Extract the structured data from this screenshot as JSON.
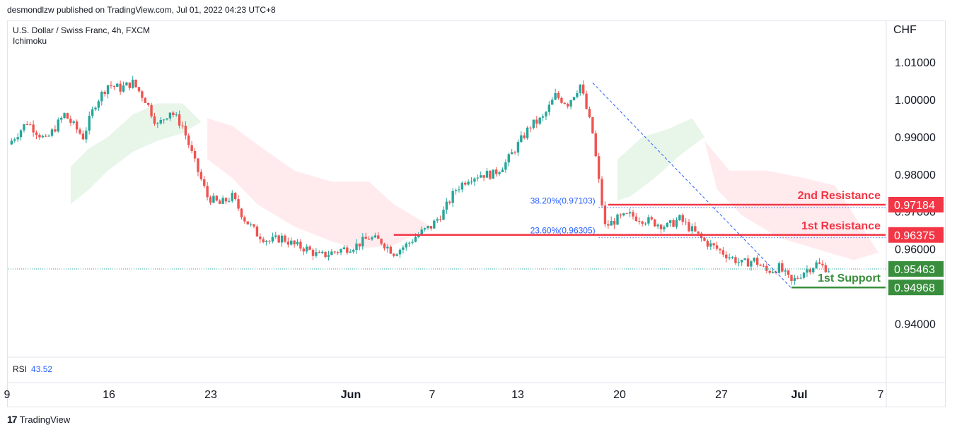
{
  "header": {
    "publisher_line": "desmondlzw published on TradingView.com, Jul 01, 2022 04:23 UTC+8"
  },
  "symbol": {
    "name": "U.S. Dollar / Swiss Franc, 4h, FXCM",
    "indicator": "Ichimoku"
  },
  "rsi": {
    "label": "RSI",
    "value": "43.52"
  },
  "footer": {
    "brand": "TradingView",
    "logo_icon": "tradingview-logo-icon"
  },
  "colors": {
    "up": "#26a69a",
    "down": "#ef5350",
    "resistance": "#f23645",
    "support": "#388e3c",
    "fib": "#2962ff",
    "cloud_bull": "#e8f5e9",
    "cloud_bear": "#ffebee"
  },
  "chart_data": {
    "type": "candlestick",
    "currency": "CHF",
    "ylim": [
      0.931,
      1.021
    ],
    "price_ticks": [
      "1.01000",
      "1.00000",
      "0.99000",
      "0.98000",
      "0.97000",
      "0.96000",
      "0.94000"
    ],
    "x_ticks": [
      "9",
      "16",
      "23",
      "Jun",
      "7",
      "13",
      "20",
      "27",
      "Jul",
      "7"
    ],
    "close_path": [
      [
        0,
        0.988
      ],
      [
        3,
        0.994
      ],
      [
        6,
        0.989
      ],
      [
        9,
        0.996
      ],
      [
        12,
        0.99
      ],
      [
        14,
        0.999
      ],
      [
        16,
        1.004
      ],
      [
        18,
        1.003
      ],
      [
        20,
        1.0045
      ],
      [
        22,
        1.0
      ],
      [
        24,
        0.993
      ],
      [
        26,
        0.997
      ],
      [
        28,
        0.993
      ],
      [
        30,
        0.983
      ],
      [
        32,
        0.974
      ],
      [
        34,
        0.972
      ],
      [
        36,
        0.974
      ],
      [
        38,
        0.968
      ],
      [
        40,
        0.964
      ],
      [
        42,
        0.962
      ],
      [
        44,
        0.963
      ],
      [
        46,
        0.961
      ],
      [
        48,
        0.96
      ],
      [
        50,
        0.958
      ],
      [
        52,
        0.959
      ],
      [
        54,
        0.96
      ],
      [
        56,
        0.961
      ],
      [
        58,
        0.963
      ],
      [
        60,
        0.962
      ],
      [
        62,
        0.959
      ],
      [
        64,
        0.961
      ],
      [
        66,
        0.964
      ],
      [
        68,
        0.966
      ],
      [
        70,
        0.97
      ],
      [
        72,
        0.976
      ],
      [
        74,
        0.979
      ],
      [
        76,
        0.98
      ],
      [
        78,
        0.98
      ],
      [
        80,
        0.983
      ],
      [
        82,
        0.988
      ],
      [
        84,
        0.993
      ],
      [
        86,
        0.995
      ],
      [
        88,
        1.001
      ],
      [
        90,
        0.999
      ],
      [
        92,
        1.004
      ],
      [
        94,
        0.991
      ],
      [
        95,
        0.978
      ],
      [
        96,
        0.966
      ],
      [
        98,
        0.968
      ],
      [
        100,
        0.969
      ],
      [
        102,
        0.968
      ],
      [
        104,
        0.967
      ],
      [
        106,
        0.966
      ],
      [
        108,
        0.968
      ],
      [
        110,
        0.965
      ],
      [
        112,
        0.962
      ],
      [
        114,
        0.96
      ],
      [
        116,
        0.958
      ],
      [
        118,
        0.956
      ],
      [
        120,
        0.957
      ],
      [
        122,
        0.954
      ],
      [
        124,
        0.955
      ],
      [
        126,
        0.951
      ],
      [
        128,
        0.954
      ],
      [
        130,
        0.956
      ],
      [
        132,
        0.9546
      ]
    ],
    "resistance_1": {
      "label": "1st Resistance",
      "value": "0.96375"
    },
    "resistance_2": {
      "label": "2nd Resistance",
      "value": "0.97184"
    },
    "support_1": {
      "label": "1st Support",
      "value": "0.94968"
    },
    "last_price": {
      "value": "0.95463"
    },
    "fib_levels": [
      {
        "label": "38.20%(0.97103)",
        "value": 0.97103
      },
      {
        "label": "23.60%(0.96305)",
        "value": 0.96305
      }
    ],
    "cloud_bull": [
      [
        10,
        0.982
      ],
      [
        13,
        0.987
      ],
      [
        16,
        0.99
      ],
      [
        20,
        0.996
      ],
      [
        24,
        0.999
      ],
      [
        28,
        0.999
      ],
      [
        31,
        0.994
      ],
      [
        28,
        0.991
      ],
      [
        24,
        0.989
      ],
      [
        20,
        0.986
      ],
      [
        16,
        0.981
      ],
      [
        13,
        0.976
      ],
      [
        10,
        0.972
      ]
    ],
    "cloud_bear": [
      [
        32,
        0.995
      ],
      [
        36,
        0.993
      ],
      [
        40,
        0.988
      ],
      [
        46,
        0.981
      ],
      [
        52,
        0.978
      ],
      [
        58,
        0.978
      ],
      [
        62,
        0.972
      ],
      [
        68,
        0.966
      ],
      [
        62,
        0.961
      ],
      [
        56,
        0.96
      ],
      [
        52,
        0.962
      ],
      [
        46,
        0.966
      ],
      [
        40,
        0.972
      ],
      [
        36,
        0.979
      ],
      [
        32,
        0.984
      ]
    ]
  }
}
